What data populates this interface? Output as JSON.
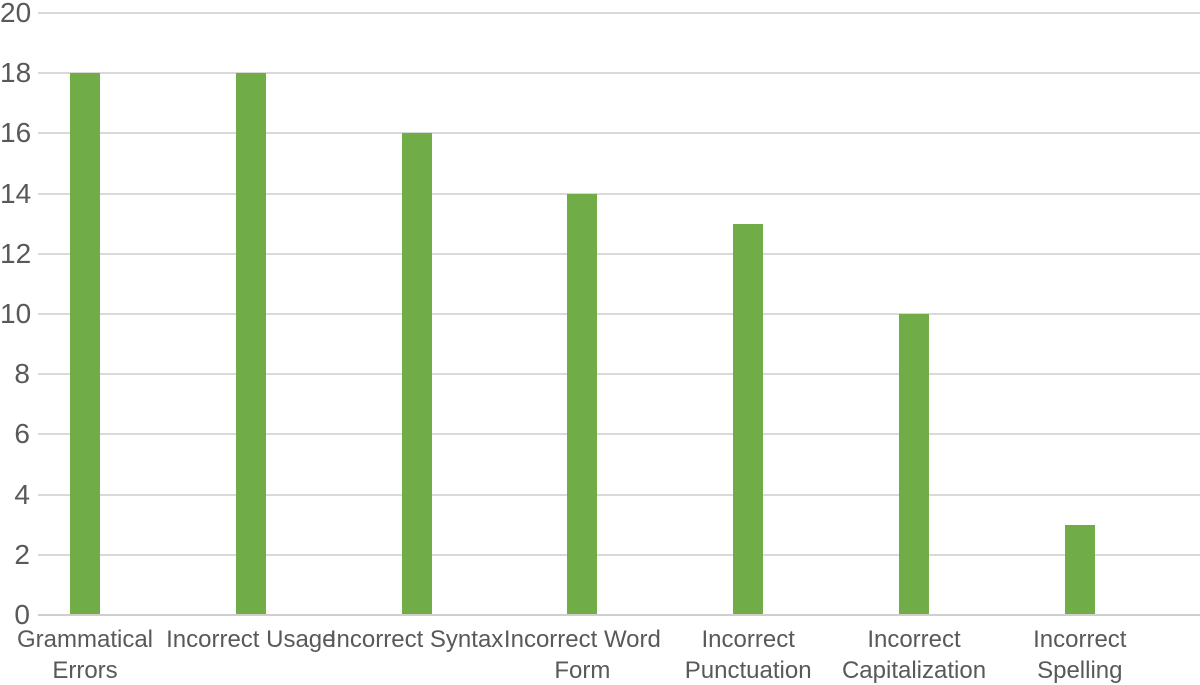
{
  "chart_data": {
    "type": "bar",
    "categories": [
      "Grammatical Errors",
      "Incorrect Usage",
      "Incorrect Syntax",
      "Incorrect Word Form",
      "Incorrect Punctuation",
      "Incorrect Capitalization",
      "Incorrect Spelling"
    ],
    "values": [
      18,
      18,
      16,
      14,
      13,
      10,
      3
    ],
    "title": "",
    "xlabel": "",
    "ylabel": "",
    "ylim": [
      0,
      20
    ],
    "yticks": [
      0,
      2,
      4,
      6,
      8,
      10,
      12,
      14,
      16,
      18,
      20
    ],
    "grid": true,
    "legend": false
  },
  "style": {
    "bar_color": "#70AD47",
    "gridline_color": "#D9D9D9",
    "axis_line_color": "#D0CECE",
    "tick_label_color": "#595959"
  }
}
